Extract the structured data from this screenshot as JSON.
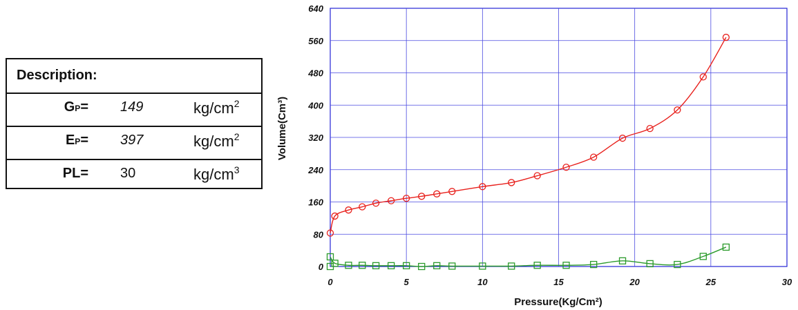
{
  "description": {
    "header": "Description:",
    "rows": [
      {
        "symbol": "G",
        "subscript": "P",
        "eq": "=",
        "value": "149",
        "italic": true,
        "unit": "kg/cm",
        "unit_exp": "2"
      },
      {
        "symbol": "E",
        "subscript": "P",
        "eq": "=",
        "value": "397",
        "italic": true,
        "unit": "kg/cm",
        "unit_exp": "2"
      },
      {
        "symbol": "PL",
        "subscript": "",
        "eq": "=",
        "value": "30",
        "italic": false,
        "unit": "kg/cm",
        "unit_exp": "3"
      }
    ]
  },
  "chart_data": {
    "type": "line",
    "title": "",
    "xlabel": "Pressure(Kg/Cm²)",
    "ylabel": "Volume(Cm³)",
    "xlim": [
      0,
      30
    ],
    "ylim": [
      0,
      640
    ],
    "xticks": [
      0,
      5,
      10,
      15,
      20,
      25,
      30
    ],
    "yticks": [
      0,
      80,
      160,
      240,
      320,
      400,
      480,
      560,
      640
    ],
    "grid": true,
    "series": [
      {
        "color": "#e8201c",
        "marker": "circle",
        "x": [
          0,
          0.3,
          1.2,
          2.1,
          3.0,
          4.0,
          5.0,
          6.0,
          7.0,
          8.0,
          10.0,
          11.9,
          13.6,
          15.5,
          17.3,
          19.2,
          21.0,
          22.8,
          24.5,
          26.0
        ],
        "y": [
          83,
          125,
          140,
          148,
          157,
          163,
          169,
          174,
          180,
          186,
          198,
          208,
          225,
          246,
          271,
          318,
          342,
          388,
          470,
          568
        ]
      },
      {
        "color": "#2a9a2a",
        "marker": "square",
        "x": [
          0,
          0.3,
          1.2,
          2.1,
          3.0,
          4.0,
          5.0,
          6.0,
          7.0,
          8.0,
          10.0,
          11.9,
          13.6,
          15.5,
          17.3,
          19.2,
          21.0,
          22.8,
          24.5,
          26.0
        ],
        "y": [
          24,
          8,
          3,
          3,
          2,
          2,
          2,
          0,
          2,
          1,
          1,
          1,
          3,
          3,
          5,
          14,
          7,
          5,
          25,
          48
        ]
      },
      {
        "color": "#2a9a2a",
        "marker": "square",
        "x": [
          0
        ],
        "y": [
          0
        ]
      }
    ]
  }
}
